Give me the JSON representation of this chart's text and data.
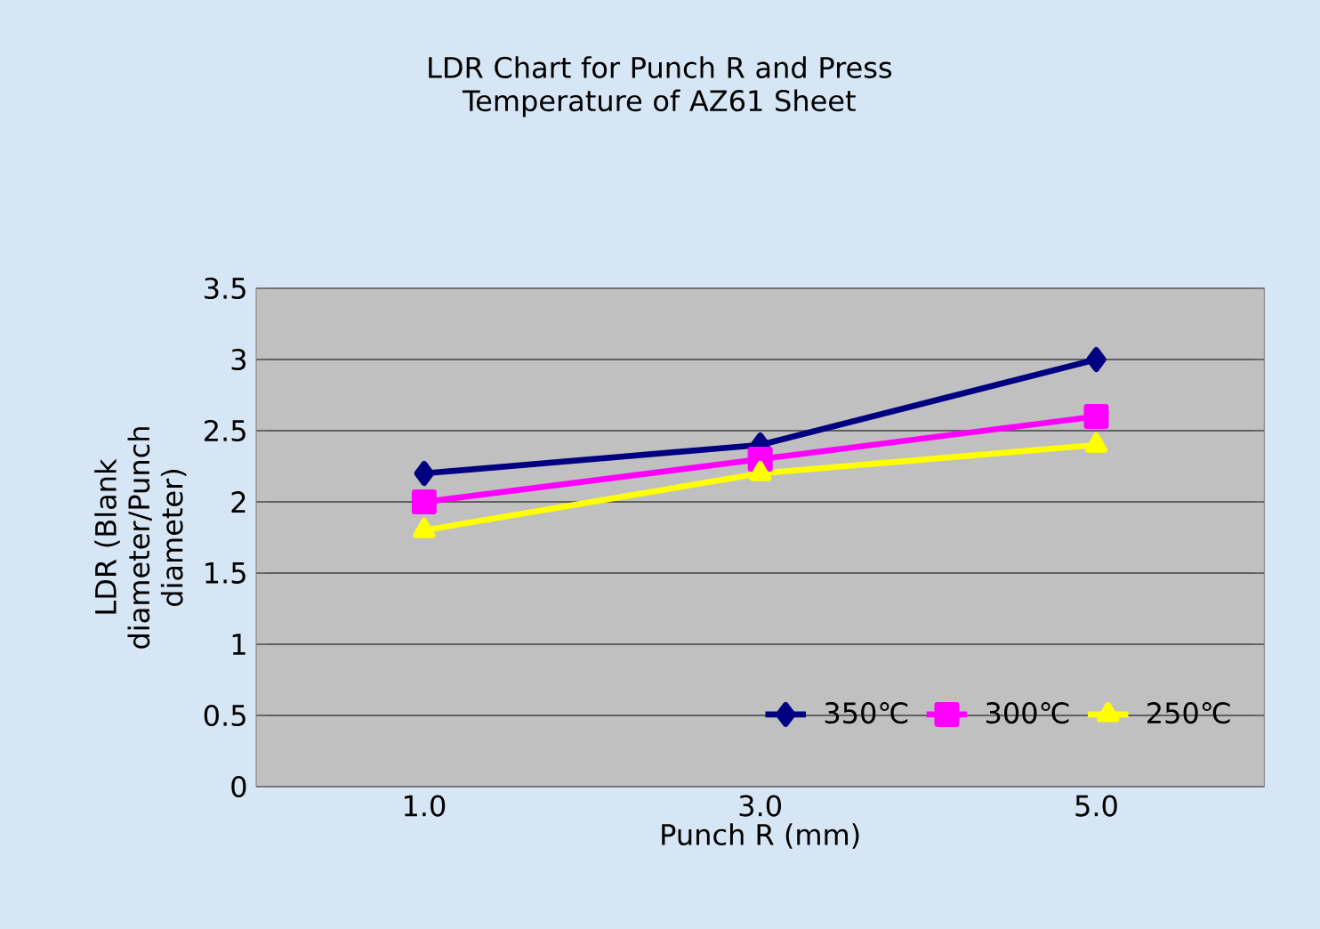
{
  "chart_data": {
    "type": "line",
    "title": "LDR  Chart for Punch R and Press Temperature of AZ61 Sheet",
    "xlabel": "Punch R (mm)",
    "ylabel": "LDR (Blank diameter/Punch diameter)",
    "categories": [
      "1.0",
      "3.0",
      "5.0"
    ],
    "series": [
      {
        "name": "350℃",
        "color": "#000080",
        "marker": "diamond",
        "values": [
          2.2,
          2.4,
          3.0
        ]
      },
      {
        "name": "300℃",
        "color": "#ff00ff",
        "marker": "square",
        "values": [
          2.0,
          2.3,
          2.6
        ]
      },
      {
        "name": "250℃",
        "color": "#ffff00",
        "marker": "triangle",
        "values": [
          1.8,
          2.2,
          2.4
        ]
      }
    ],
    "ylim": [
      0,
      3.5
    ],
    "yticks": [
      0,
      0.5,
      1,
      1.5,
      2,
      2.5,
      3,
      3.5
    ],
    "grid": "y",
    "legend": "bottom right"
  }
}
